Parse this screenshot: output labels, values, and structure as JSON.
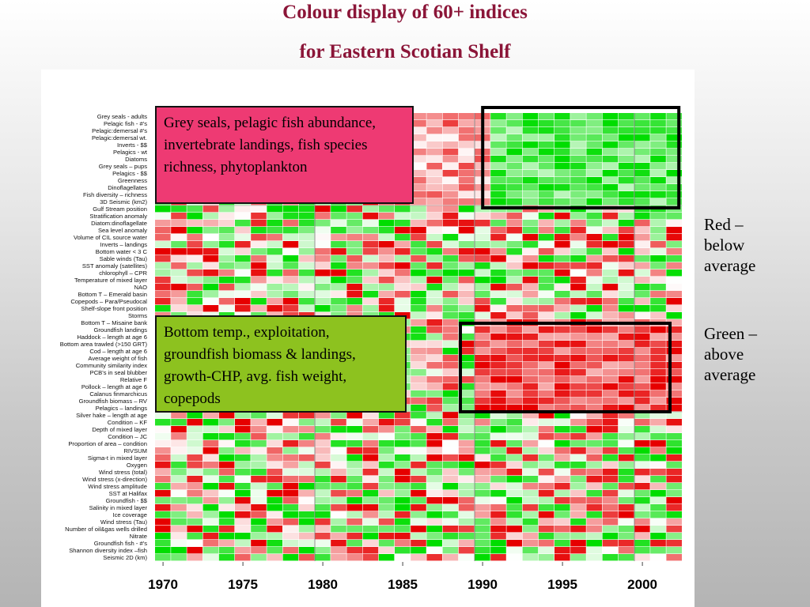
{
  "title_line1": "Colour display of 60+ indices",
  "title_line2": "for Eastern Scotian Shelf",
  "callouts": {
    "top": "Grey seals, pelagic fish abundance, invertebrate landings, fish species richness, phytoplankton",
    "bottom": "Bottom temp., exploitation, groundfish biomass & landings, growth-CHP, avg. fish weight, copepods"
  },
  "notes": {
    "red": [
      "Red –",
      "below",
      "average"
    ],
    "green": [
      "Green –",
      "above",
      "average"
    ]
  },
  "colors": {
    "red": "#e60000",
    "green": "#00dd00",
    "neutral": "#ffffff",
    "title": "#8b1538",
    "callout_top": "#ee3a73",
    "callout_bottom": "#8dc21f"
  },
  "chart_data": {
    "type": "heatmap",
    "color_scale": "red = below average, white = average, green = above average",
    "x_ticks": [
      "1970",
      "1975",
      "1980",
      "1985",
      "1990",
      "1995",
      "2000"
    ],
    "x_range": [
      1970,
      2002
    ],
    "rows": [
      "Grey seals - adults",
      "Pelagic fish - #'s",
      "Pelagic:demersal #'s",
      "Pelagic:demersal wt.",
      "Inverts - $$",
      "Pelagics - wt",
      "Diatoms",
      "Grey seals – pups",
      "Pelagics - $$",
      "Greenness",
      "Dinoflagellates",
      "Fish diversity – richness",
      "3D Seismic (km2)",
      "Gulf Stream position",
      "Stratification anomaly",
      "Diatom:dinoflagellate",
      "Sea level anomaly",
      "Volume of CIL source water",
      "Inverts – landings",
      "Bottom water < 3 C",
      "Sable winds (Tau)",
      "SST anomaly (satellites)",
      "chlorophyll – CPR",
      "Temperature of mixed layer",
      "NAO",
      "Bottom T – Emerald basin",
      "Copepods – Para/Pseudocal",
      "Shelf-slope front position",
      "Storms",
      "Bottom T – Misaine bank",
      "Groundfish landings",
      "Haddock – length at age 6",
      "Bottom area trawled (>150 GRT)",
      "Cod – length at age 6",
      "Average weight of fish",
      "Community similarity index",
      "PCB's in seal blubber",
      "Relative F",
      "Pollock – length at age 6",
      "Calanus finmarchicus",
      "Groundfish biomass – RV",
      "Pelagics – landings",
      "Silver hake – length at age",
      "Condition – KF",
      "Depth of mixed layer",
      "Condition – JC",
      "Proportion of area – condition",
      "RIVSUM",
      "Sigma-t in mixed layer",
      "Oxygen",
      "Wind stress (total)",
      "Wind stress (x-direction)",
      "Wind stress amplitude",
      "SST at Halifax",
      "Groundfish - $$",
      "Salinity in mixed layer",
      "Ice coverage",
      "Wind stress (Tau)",
      "Number of oil&gas wells drilled",
      "Nitrate",
      "Groundfish fish - #'s",
      "Shannon diversity index –fish",
      "Seismic 2D (km)"
    ],
    "highlight_boxes": [
      {
        "rows": "Grey seals - adults … 3D Seismic (km2)",
        "years": "1991–2002",
        "pattern": "above average"
      },
      {
        "rows": "Bottom T – Misaine bank … Pelagics – landings",
        "years": "1990–2002",
        "pattern": "below average"
      }
    ]
  }
}
